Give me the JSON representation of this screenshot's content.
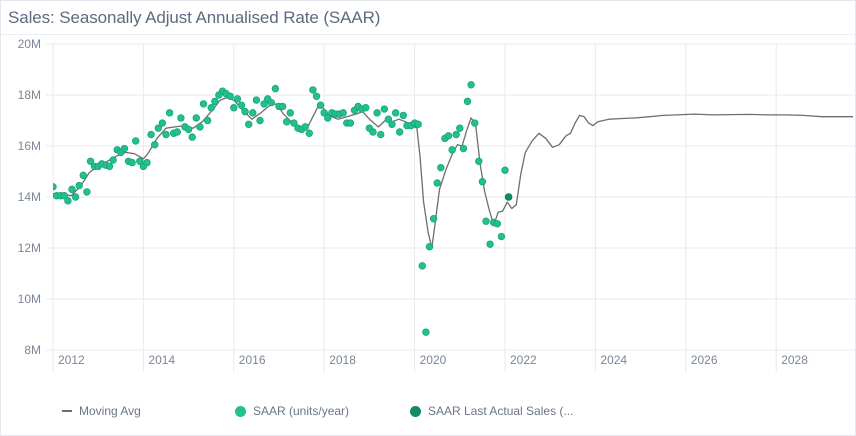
{
  "title": "Sales: Seasonally Adjust Annualised Rate (SAAR)",
  "colors": {
    "saar": "#22c08f",
    "saar_stroke": "#17a57a",
    "last_actual": "#13896a",
    "moving_avg": "#6e6e6e",
    "grid": "#e8eaee",
    "tick_text": "#7b8696",
    "title_text": "#5c6b80"
  },
  "legend": {
    "items": [
      {
        "label": "Moving Avg",
        "marker": "line"
      },
      {
        "label": "SAAR (units/year)",
        "marker": "dot"
      },
      {
        "label": "SAAR Last Actual Sales (...",
        "marker": "dot-dark"
      }
    ]
  },
  "chart_data": {
    "type": "line+scatter",
    "title": "Sales: Seasonally Adjust Annualised Rate (SAAR)",
    "xlabel": "",
    "ylabel": "",
    "xlim": [
      2011.9,
      2029.7
    ],
    "ylim": [
      8000000,
      20000000
    ],
    "grid": true,
    "legend_position": "bottom",
    "x_ticks": [
      2012,
      2014,
      2016,
      2018,
      2020,
      2022,
      2024,
      2026,
      2028
    ],
    "x_tick_labels": [
      "2012",
      "2014",
      "2016",
      "2018",
      "2020",
      "2022",
      "2024",
      "2026",
      "2028"
    ],
    "y_ticks": [
      8000000,
      10000000,
      12000000,
      14000000,
      16000000,
      18000000,
      20000000
    ],
    "y_tick_labels": [
      "8M",
      "10M",
      "12M",
      "14M",
      "16M",
      "18M",
      "20M"
    ],
    "series": [
      {
        "name": "SAAR (units/year)",
        "kind": "scatter",
        "points": [
          [
            2011.92,
            13.9
          ],
          [
            2012.0,
            14.4
          ],
          [
            2012.08,
            14.05
          ],
          [
            2012.17,
            14.05
          ],
          [
            2012.25,
            14.05
          ],
          [
            2012.33,
            13.85
          ],
          [
            2012.42,
            14.3
          ],
          [
            2012.5,
            14.0
          ],
          [
            2012.58,
            14.45
          ],
          [
            2012.67,
            14.85
          ],
          [
            2012.75,
            14.2
          ],
          [
            2012.83,
            15.4
          ],
          [
            2012.92,
            15.2
          ],
          [
            2013.0,
            15.2
          ],
          [
            2013.08,
            15.3
          ],
          [
            2013.17,
            15.25
          ],
          [
            2013.25,
            15.2
          ],
          [
            2013.33,
            15.45
          ],
          [
            2013.42,
            15.85
          ],
          [
            2013.5,
            15.75
          ],
          [
            2013.58,
            15.9
          ],
          [
            2013.67,
            15.4
          ],
          [
            2013.75,
            15.35
          ],
          [
            2013.83,
            16.2
          ],
          [
            2013.92,
            15.4
          ],
          [
            2014.0,
            15.2
          ],
          [
            2014.08,
            15.35
          ],
          [
            2014.17,
            16.45
          ],
          [
            2014.25,
            16.05
          ],
          [
            2014.33,
            16.7
          ],
          [
            2014.42,
            16.9
          ],
          [
            2014.5,
            16.45
          ],
          [
            2014.58,
            17.3
          ],
          [
            2014.67,
            16.5
          ],
          [
            2014.75,
            16.55
          ],
          [
            2014.83,
            17.1
          ],
          [
            2014.92,
            16.75
          ],
          [
            2015.0,
            16.65
          ],
          [
            2015.08,
            16.35
          ],
          [
            2015.17,
            17.1
          ],
          [
            2015.25,
            16.75
          ],
          [
            2015.33,
            17.65
          ],
          [
            2015.42,
            17.0
          ],
          [
            2015.5,
            17.5
          ],
          [
            2015.58,
            17.75
          ],
          [
            2015.67,
            18.0
          ],
          [
            2015.75,
            18.15
          ],
          [
            2015.83,
            18.05
          ],
          [
            2015.92,
            17.95
          ],
          [
            2016.0,
            17.5
          ],
          [
            2016.08,
            17.85
          ],
          [
            2016.17,
            17.6
          ],
          [
            2016.25,
            17.35
          ],
          [
            2016.33,
            16.85
          ],
          [
            2016.42,
            17.3
          ],
          [
            2016.5,
            17.8
          ],
          [
            2016.58,
            17.0
          ],
          [
            2016.67,
            17.65
          ],
          [
            2016.75,
            17.85
          ],
          [
            2016.83,
            17.7
          ],
          [
            2016.92,
            18.25
          ],
          [
            2017.0,
            17.55
          ],
          [
            2017.08,
            17.55
          ],
          [
            2017.17,
            16.95
          ],
          [
            2017.25,
            17.3
          ],
          [
            2017.33,
            16.9
          ],
          [
            2017.42,
            16.7
          ],
          [
            2017.5,
            16.65
          ],
          [
            2017.58,
            16.75
          ],
          [
            2017.67,
            16.5
          ],
          [
            2017.75,
            18.2
          ],
          [
            2017.83,
            17.95
          ],
          [
            2017.92,
            17.6
          ],
          [
            2018.0,
            17.3
          ],
          [
            2018.08,
            17.1
          ],
          [
            2018.17,
            17.3
          ],
          [
            2018.25,
            17.25
          ],
          [
            2018.33,
            17.25
          ],
          [
            2018.42,
            17.3
          ],
          [
            2018.5,
            16.9
          ],
          [
            2018.58,
            16.9
          ],
          [
            2018.67,
            17.4
          ],
          [
            2018.75,
            17.55
          ],
          [
            2018.83,
            17.45
          ],
          [
            2018.92,
            17.5
          ],
          [
            2019.0,
            16.7
          ],
          [
            2019.08,
            16.55
          ],
          [
            2019.17,
            17.3
          ],
          [
            2019.25,
            16.45
          ],
          [
            2019.33,
            17.45
          ],
          [
            2019.42,
            17.05
          ],
          [
            2019.5,
            16.85
          ],
          [
            2019.58,
            17.3
          ],
          [
            2019.67,
            16.55
          ],
          [
            2019.75,
            17.2
          ],
          [
            2019.83,
            16.8
          ],
          [
            2019.92,
            16.8
          ],
          [
            2020.0,
            16.9
          ],
          [
            2020.08,
            16.85
          ],
          [
            2020.17,
            11.3
          ],
          [
            2020.25,
            8.7
          ],
          [
            2020.33,
            12.05
          ],
          [
            2020.42,
            13.15
          ],
          [
            2020.5,
            14.55
          ],
          [
            2020.58,
            15.15
          ],
          [
            2020.67,
            16.3
          ],
          [
            2020.75,
            16.4
          ],
          [
            2020.83,
            15.85
          ],
          [
            2020.92,
            16.45
          ],
          [
            2021.0,
            16.7
          ],
          [
            2021.08,
            15.9
          ],
          [
            2021.17,
            17.75
          ],
          [
            2021.25,
            18.4
          ],
          [
            2021.33,
            16.9
          ],
          [
            2021.42,
            15.4
          ],
          [
            2021.5,
            14.6
          ],
          [
            2021.58,
            13.05
          ],
          [
            2021.67,
            12.15
          ],
          [
            2021.75,
            13.0
          ],
          [
            2021.83,
            12.95
          ],
          [
            2021.92,
            12.45
          ],
          [
            2022.0,
            15.05
          ]
        ]
      },
      {
        "name": "SAAR Last Actual Sales (...",
        "kind": "scatter",
        "points": [
          [
            2022.08,
            14.0
          ]
        ]
      },
      {
        "name": "Moving Avg",
        "kind": "line",
        "points": [
          [
            2011.92,
            14.15
          ],
          [
            2012.2,
            14.1
          ],
          [
            2012.4,
            14.05
          ],
          [
            2012.6,
            14.4
          ],
          [
            2012.8,
            14.95
          ],
          [
            2013.0,
            15.25
          ],
          [
            2013.2,
            15.4
          ],
          [
            2013.4,
            15.6
          ],
          [
            2013.6,
            15.75
          ],
          [
            2013.8,
            15.7
          ],
          [
            2014.0,
            15.5
          ],
          [
            2014.1,
            15.7
          ],
          [
            2014.3,
            16.3
          ],
          [
            2014.5,
            16.7
          ],
          [
            2014.7,
            16.75
          ],
          [
            2014.9,
            16.8
          ],
          [
            2015.1,
            16.7
          ],
          [
            2015.3,
            16.95
          ],
          [
            2015.5,
            17.35
          ],
          [
            2015.7,
            17.8
          ],
          [
            2015.85,
            17.9
          ],
          [
            2016.0,
            17.8
          ],
          [
            2016.2,
            17.4
          ],
          [
            2016.4,
            17.05
          ],
          [
            2016.6,
            17.3
          ],
          [
            2016.8,
            17.6
          ],
          [
            2016.95,
            17.65
          ],
          [
            2017.1,
            17.25
          ],
          [
            2017.3,
            16.9
          ],
          [
            2017.5,
            16.75
          ],
          [
            2017.65,
            16.8
          ],
          [
            2017.85,
            17.5
          ],
          [
            2017.95,
            17.55
          ],
          [
            2018.1,
            17.2
          ],
          [
            2018.3,
            17.05
          ],
          [
            2018.5,
            17.15
          ],
          [
            2018.7,
            17.25
          ],
          [
            2018.85,
            17.35
          ],
          [
            2019.0,
            17.05
          ],
          [
            2019.2,
            16.75
          ],
          [
            2019.35,
            17.0
          ],
          [
            2019.5,
            16.95
          ],
          [
            2019.65,
            17.05
          ],
          [
            2019.8,
            16.95
          ],
          [
            2019.95,
            16.8
          ],
          [
            2020.05,
            16.7
          ],
          [
            2020.12,
            15.6
          ],
          [
            2020.2,
            13.8
          ],
          [
            2020.3,
            12.6
          ],
          [
            2020.38,
            12.0
          ],
          [
            2020.45,
            12.9
          ],
          [
            2020.55,
            14.3
          ],
          [
            2020.7,
            15.1
          ],
          [
            2020.85,
            15.75
          ],
          [
            2020.95,
            16.05
          ],
          [
            2021.05,
            16.0
          ],
          [
            2021.15,
            16.6
          ],
          [
            2021.25,
            17.1
          ],
          [
            2021.35,
            16.85
          ],
          [
            2021.45,
            15.3
          ],
          [
            2021.55,
            14.2
          ],
          [
            2021.65,
            13.5
          ],
          [
            2021.75,
            12.9
          ],
          [
            2021.85,
            13.4
          ],
          [
            2021.95,
            13.45
          ],
          [
            2022.05,
            13.8
          ],
          [
            2022.15,
            13.55
          ],
          [
            2022.25,
            13.7
          ],
          [
            2022.35,
            14.9
          ],
          [
            2022.45,
            15.75
          ],
          [
            2022.6,
            16.2
          ],
          [
            2022.75,
            16.5
          ],
          [
            2022.9,
            16.3
          ],
          [
            2023.05,
            15.95
          ],
          [
            2023.2,
            16.05
          ],
          [
            2023.35,
            16.4
          ],
          [
            2023.45,
            16.5
          ],
          [
            2023.55,
            16.9
          ],
          [
            2023.65,
            17.2
          ],
          [
            2023.75,
            17.15
          ],
          [
            2023.85,
            16.9
          ],
          [
            2023.95,
            16.8
          ],
          [
            2024.05,
            16.95
          ],
          [
            2024.3,
            17.05
          ],
          [
            2024.6,
            17.08
          ],
          [
            2024.9,
            17.1
          ],
          [
            2025.2,
            17.15
          ],
          [
            2025.5,
            17.2
          ],
          [
            2025.8,
            17.22
          ],
          [
            2026.2,
            17.25
          ],
          [
            2026.6,
            17.22
          ],
          [
            2027.0,
            17.23
          ],
          [
            2027.4,
            17.24
          ],
          [
            2027.8,
            17.22
          ],
          [
            2028.2,
            17.22
          ],
          [
            2028.6,
            17.2
          ],
          [
            2029.0,
            17.15
          ],
          [
            2029.4,
            17.15
          ],
          [
            2029.7,
            17.15
          ]
        ]
      }
    ],
    "value_unit": "millions of units/year (y values above in M)"
  }
}
